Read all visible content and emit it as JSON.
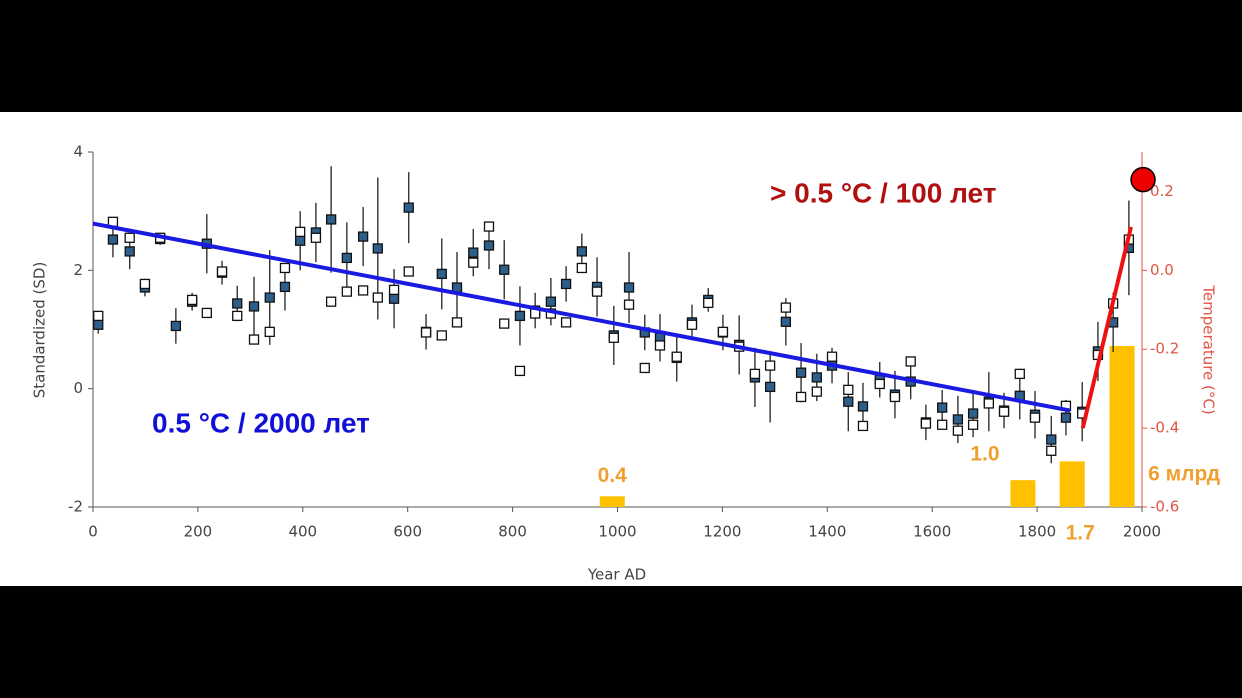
{
  "chart_data": {
    "type": "scatter",
    "xlabel": "Year AD",
    "ylabel": "Standardized (SD)",
    "y2label": "Temperature (°C)",
    "xlim": [
      0,
      2000
    ],
    "ylim": [
      -2,
      4
    ],
    "y2lim": [
      -0.6,
      0.3
    ],
    "xticks": [
      0,
      200,
      400,
      600,
      800,
      1000,
      1200,
      1400,
      1600,
      1800,
      2000
    ],
    "yticks": [
      -2,
      0,
      2,
      4
    ],
    "y2ticks": [
      -0.6,
      -0.4,
      -0.2,
      {
        "value": 0,
        "label": "0.0"
      },
      0.2
    ],
    "series": [
      {
        "color": "#2e5f8a",
        "x": [
          10,
          38,
          70,
          99,
          128,
          158,
          189,
          217,
          246,
          275,
          307,
          337,
          366,
          395,
          425,
          454,
          484,
          515,
          543,
          574,
          602,
          635,
          665,
          694,
          725,
          755,
          784,
          814,
          843,
          873,
          902,
          932,
          961,
          993,
          1022,
          1052,
          1081,
          1113,
          1142,
          1173,
          1201,
          1232,
          1262,
          1291,
          1321,
          1350,
          1380,
          1409,
          1440,
          1468,
          1500,
          1529,
          1559,
          1588,
          1619,
          1649,
          1678,
          1708,
          1737,
          1767,
          1796,
          1827,
          1855,
          1886,
          1916,
          1945,
          1975
        ],
        "values": [
          1.08,
          2.52,
          2.32,
          1.71,
          2.53,
          1.06,
          1.47,
          2.45,
          1.96,
          1.44,
          1.39,
          1.54,
          1.72,
          2.5,
          2.64,
          2.86,
          2.21,
          2.57,
          2.37,
          1.52,
          3.06,
          0.96,
          1.94,
          1.71,
          2.3,
          2.42,
          2.01,
          1.23,
          1.32,
          1.47,
          1.77,
          2.32,
          1.72,
          0.9,
          1.71,
          0.95,
          0.86,
          0.52,
          1.12,
          1.5,
          0.95,
          0.74,
          0.19,
          0.03,
          1.13,
          0.27,
          0.19,
          0.39,
          -0.22,
          -0.3,
          0.15,
          -0.1,
          0.12,
          -0.57,
          -0.32,
          -0.52,
          -0.42,
          -0.22,
          -0.37,
          -0.12,
          -0.44,
          -0.86,
          -0.49,
          -0.39,
          0.63,
          1.12,
          2.38
        ],
        "errors": [
          0.15,
          0.3,
          0.3,
          0.15,
          0.1,
          0.3,
          0.15,
          0.5,
          0.2,
          0.3,
          0.5,
          0.8,
          0.4,
          0.5,
          0.5,
          0.9,
          0.6,
          0.5,
          1.2,
          0.5,
          0.6,
          0.3,
          0.6,
          0.6,
          0.4,
          0.4,
          0.5,
          0.5,
          0.3,
          0.4,
          0.3,
          0.3,
          0.5,
          0.5,
          0.6,
          0.3,
          0.4,
          0.4,
          0.3,
          0.2,
          0.3,
          0.5,
          0.5,
          0.6,
          0.4,
          0.5,
          0.4,
          0.3,
          0.5,
          0.4,
          0.3,
          0.4,
          0.3,
          0.3,
          0.3,
          0.4,
          0.4,
          0.5,
          0.3,
          0.4,
          0.4,
          0.4,
          0.3,
          0.5,
          0.5,
          0.5,
          0.8
        ]
      },
      {
        "color": "#ffffff",
        "x": [
          10,
          38,
          70,
          99,
          128,
          189,
          217,
          246,
          275,
          307,
          337,
          366,
          395,
          425,
          454,
          484,
          515,
          543,
          574,
          602,
          635,
          665,
          694,
          725,
          755,
          784,
          814,
          843,
          873,
          902,
          932,
          961,
          993,
          1022,
          1052,
          1081,
          1113,
          1142,
          1173,
          1201,
          1232,
          1262,
          1291,
          1321,
          1350,
          1380,
          1409,
          1440,
          1468,
          1500,
          1529,
          1559,
          1588,
          1619,
          1649,
          1678,
          1708,
          1737,
          1767,
          1796,
          1827,
          1855,
          1886,
          1916,
          1945,
          1975
        ],
        "values": [
          1.23,
          2.82,
          2.55,
          1.77,
          2.55,
          1.5,
          1.28,
          1.98,
          1.23,
          0.83,
          0.96,
          2.04,
          2.65,
          2.55,
          1.47,
          1.64,
          1.66,
          1.54,
          1.67,
          1.98,
          0.95,
          0.9,
          1.12,
          2.13,
          2.74,
          1.1,
          0.3,
          1.27,
          1.27,
          1.12,
          2.04,
          1.64,
          0.86,
          1.42,
          0.35,
          0.73,
          0.54,
          1.08,
          1.45,
          0.96,
          0.71,
          0.25,
          0.39,
          1.37,
          -0.14,
          -0.05,
          0.54,
          -0.02,
          -0.63,
          0.08,
          -0.14,
          0.46,
          -0.59,
          -0.61,
          -0.71,
          -0.61,
          -0.25,
          -0.39,
          0.25,
          -0.49,
          -1.05,
          -0.29,
          -0.42,
          0.57,
          1.44,
          2.52
        ]
      }
    ],
    "trends": [
      {
        "color": "#1a1ae0",
        "x": [
          0,
          1863
        ],
        "values": [
          2.79,
          -0.37
        ]
      },
      {
        "color": "#ee1111",
        "axis": "y2",
        "x": [
          1887,
          1979
        ],
        "values": [
          -0.4,
          0.11
        ]
      }
    ],
    "marker": {
      "color": "#ee0000",
      "axis": "y2",
      "x": 2002,
      "value": 0.23
    },
    "population": {
      "color": "#ffc000",
      "label_color": "#f0a030",
      "x": [
        990,
        1773,
        1867,
        1962
      ],
      "values": [
        0.4,
        1.0,
        1.7,
        6
      ],
      "value_labels": [
        "0.4",
        "1.0",
        "1.7",
        "6 млрд"
      ]
    },
    "annotations": [
      {
        "text": "0.5 °C / 2000 лет",
        "color": "#1010d8"
      },
      {
        "text": "> 0.5 °C / 100 лет",
        "color": "#b01010"
      }
    ]
  }
}
